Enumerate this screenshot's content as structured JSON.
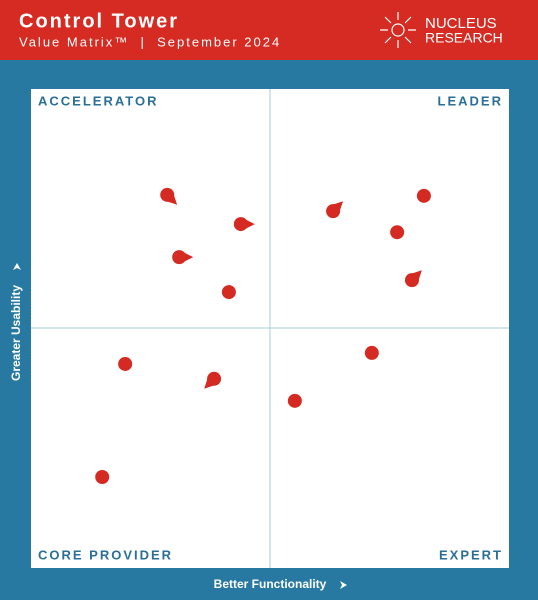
{
  "header": {
    "title": "Control Tower",
    "subtitle": "Value Matrix™  |  September 2024",
    "logo_line1": "NUCLEUS",
    "logo_line2": "RESEARCH"
  },
  "chart_data": {
    "type": "scatter",
    "color": "#d42a22",
    "x": [
      28.5,
      43.9,
      31.0,
      41.4,
      63.2,
      82.2,
      76.6,
      79.7,
      71.3,
      19.7,
      38.3,
      55.2,
      14.9
    ],
    "y": [
      77.9,
      71.8,
      64.9,
      57.6,
      74.5,
      77.7,
      70.1,
      60.1,
      44.9,
      42.6,
      39.5,
      34.9,
      19.0
    ],
    "arrows": [
      -45,
      0,
      0,
      null,
      45,
      null,
      null,
      45,
      null,
      null,
      -135,
      null,
      null
    ],
    "xlim": [
      0,
      100
    ],
    "ylim": [
      0,
      100
    ],
    "quadrants": {
      "top_left": "ACCELERATOR",
      "top_right": "LEADER",
      "bottom_left": "CORE PROVIDER",
      "bottom_right": "EXPERT"
    },
    "xlabel": "Better Functionality",
    "ylabel": "Greater Usability"
  }
}
